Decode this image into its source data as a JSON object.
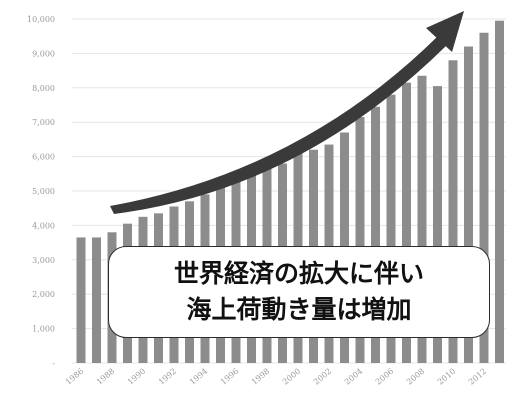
{
  "chart_data": {
    "type": "bar",
    "title": "",
    "xlabel": "",
    "ylabel": "",
    "categories": [
      "1986",
      "1987",
      "1988",
      "1989",
      "1990",
      "1991",
      "1992",
      "1993",
      "1994",
      "1995",
      "1996",
      "1997",
      "1998",
      "1999",
      "2000",
      "2001",
      "2002",
      "2003",
      "2004",
      "2005",
      "2006",
      "2007",
      "2008",
      "2009",
      "2010",
      "2011",
      "2012",
      "2013"
    ],
    "x_tick_labels": [
      "1986",
      "1988",
      "1990",
      "1992",
      "1994",
      "1996",
      "1998",
      "2000",
      "2002",
      "2004",
      "2006",
      "2008",
      "2010",
      "2012"
    ],
    "y_tick_labels": [
      "-",
      "1,000",
      "2,000",
      "3,000",
      "4,000",
      "5,000",
      "6,000",
      "7,000",
      "8,000",
      "9,000",
      "10,000"
    ],
    "values": [
      3650,
      3650,
      3800,
      4050,
      4250,
      4350,
      4550,
      4700,
      4900,
      5150,
      5350,
      5600,
      5700,
      5800,
      6150,
      6200,
      6350,
      6700,
      7150,
      7450,
      7800,
      8150,
      8350,
      8050,
      8800,
      9200,
      9600,
      9950
    ],
    "ylim": [
      0,
      10000
    ],
    "grid": true,
    "bar_color": "#8c8c8c",
    "arrow_color": "#3a3a3a",
    "annotation": {
      "line1": "世界経済の拡大に伴い",
      "line2": "海上荷動き量は増加"
    }
  }
}
